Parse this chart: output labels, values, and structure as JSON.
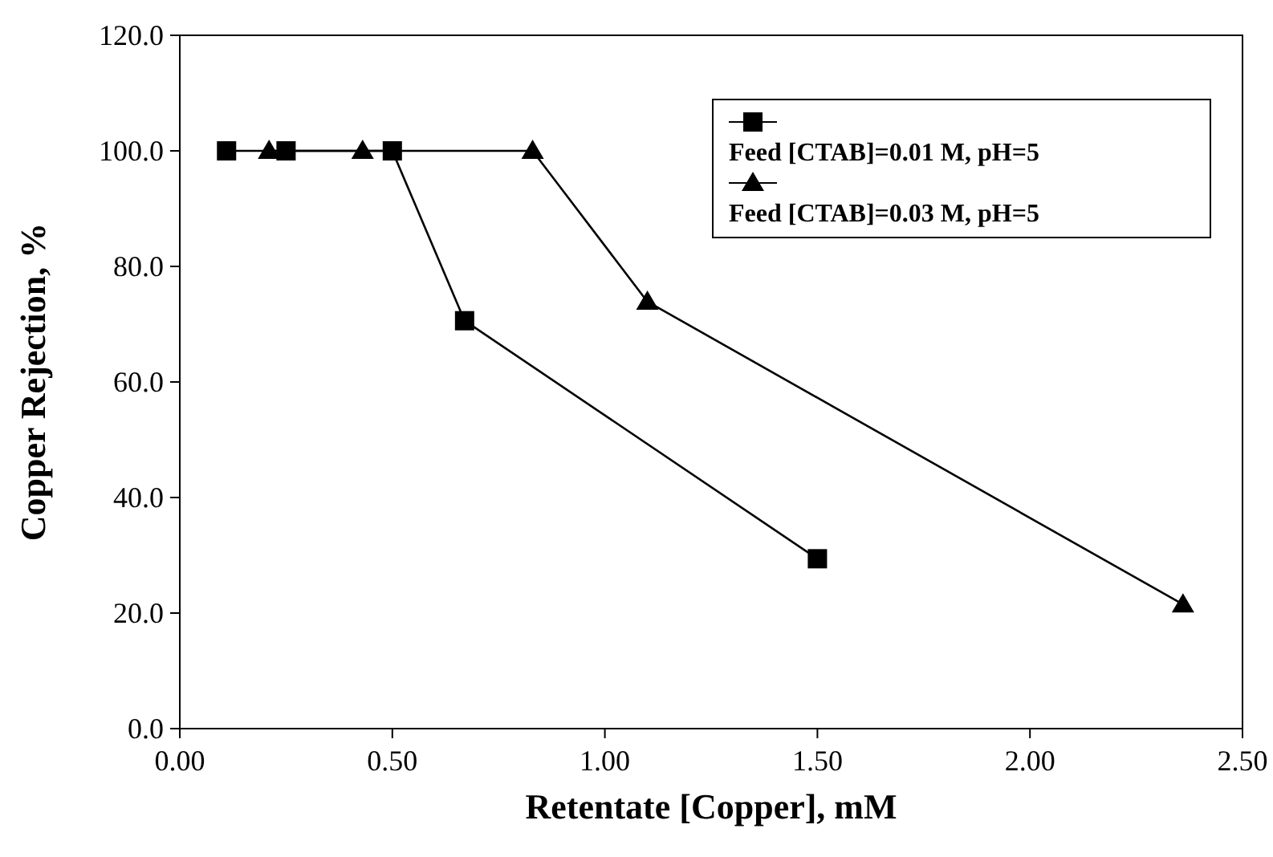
{
  "chart_data": {
    "type": "line",
    "xlabel": "Retentate [Copper], mM",
    "ylabel": "Copper Rejection, %",
    "xlim": [
      0,
      2.5
    ],
    "xticks": [
      {
        "value": 0,
        "label": "0.00"
      },
      {
        "value": 0.5,
        "label": "0.50"
      },
      {
        "value": 1,
        "label": "1.00"
      },
      {
        "value": 1.5,
        "label": "1.50"
      },
      {
        "value": 2,
        "label": "2.00"
      },
      {
        "value": 2.5,
        "label": "2.50"
      }
    ],
    "ylim": [
      0,
      120
    ],
    "yticks": [
      {
        "value": 0,
        "label": "0.0"
      },
      {
        "value": 20,
        "label": "20.0"
      },
      {
        "value": 40,
        "label": "40.0"
      },
      {
        "value": 60,
        "label": "60.0"
      },
      {
        "value": 80,
        "label": "80.0"
      },
      {
        "value": 100,
        "label": "100.0"
      },
      {
        "value": 120,
        "label": "120.0"
      }
    ],
    "grid": false,
    "legend": "top right",
    "series": [
      {
        "name": "Feed [CTAB]=0.01 M, pH=5",
        "color": "#000000",
        "marker": "square",
        "x": [
          0.11,
          0.25,
          0.5,
          0.67,
          1.5
        ],
        "values": [
          100,
          100,
          100,
          70.6,
          29.4
        ]
      },
      {
        "name": "Feed [CTAB]=0.03 M, pH=5",
        "color": "#000000",
        "marker": "triangle",
        "x": [
          0.21,
          0.43,
          0.83,
          1.1,
          2.36
        ],
        "values": [
          100,
          100,
          100,
          73.9,
          21.5
        ]
      }
    ]
  }
}
